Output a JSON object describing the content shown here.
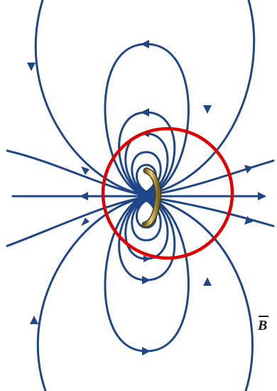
{
  "diagram": {
    "type": "magnetic-dipole-field-lines",
    "field_symbol": "B",
    "colors": {
      "field_line": "#1f4788",
      "highlight_circle": "#e00000",
      "current_loop": "#b89a3e",
      "background": "#ffffff"
    },
    "elements": [
      "field-lines",
      "direction-arrows",
      "current-loop",
      "highlight-circle",
      "field-label"
    ]
  }
}
